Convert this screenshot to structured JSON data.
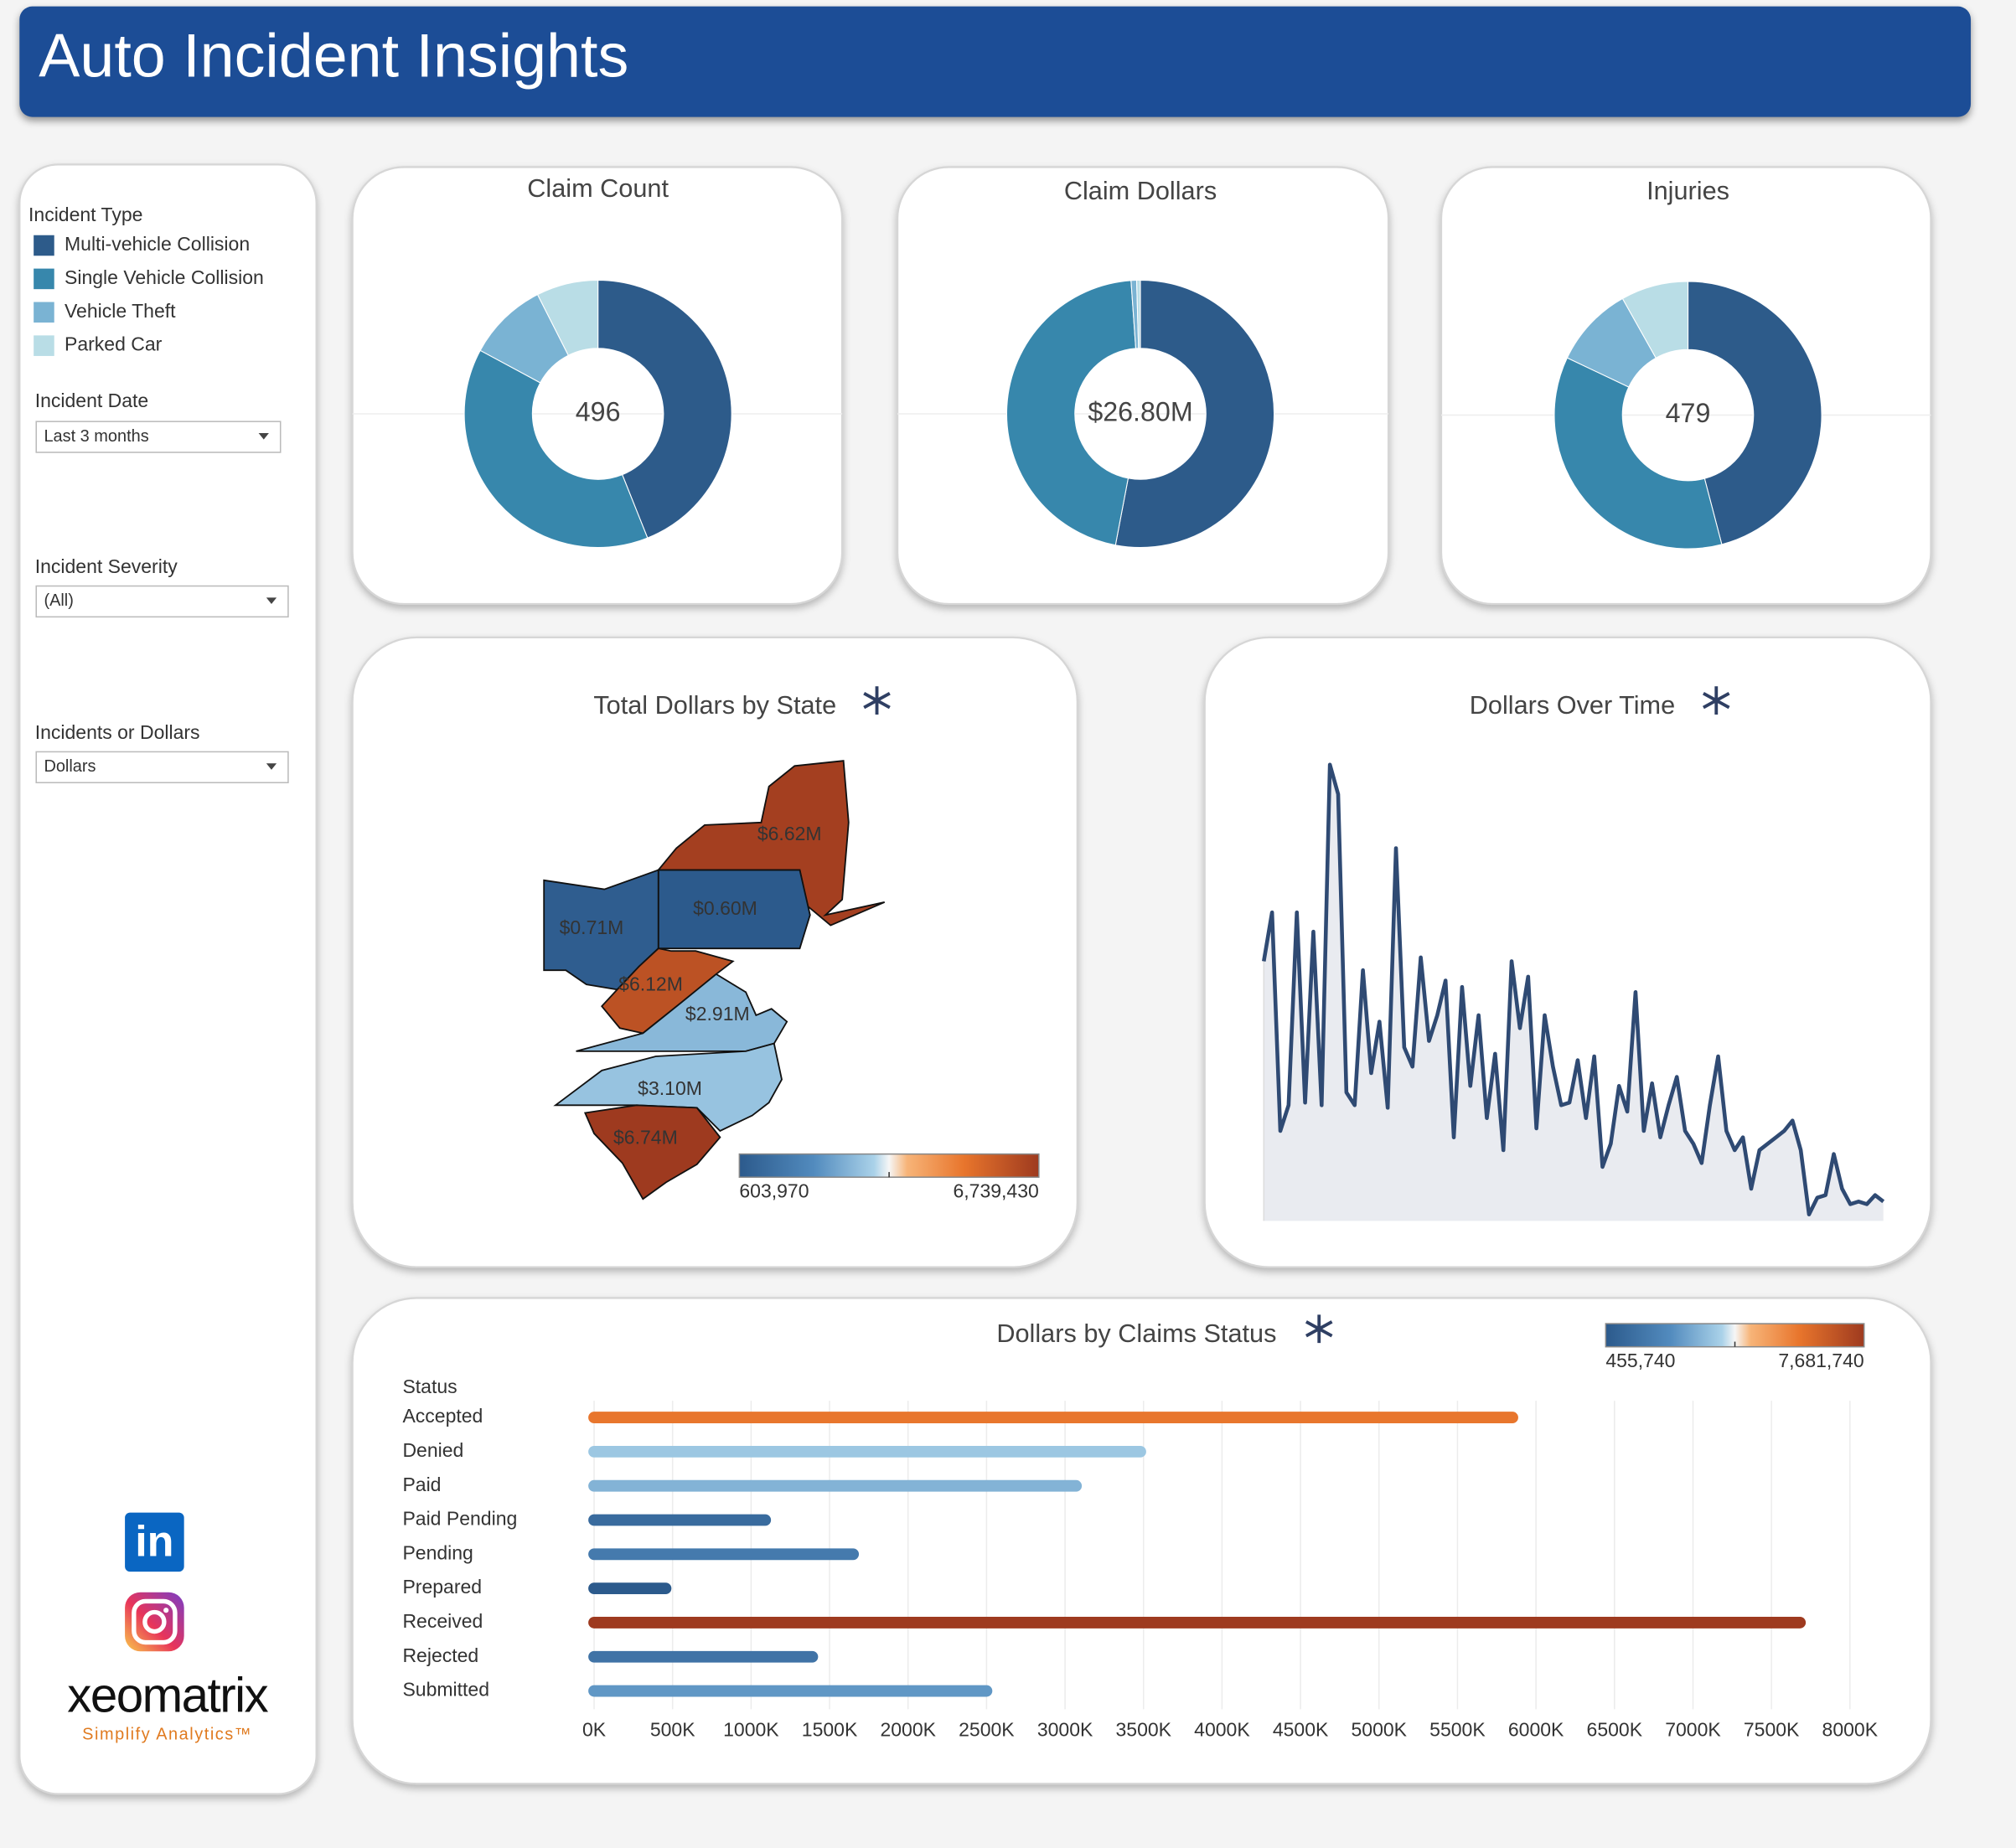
{
  "header": {
    "title": "Auto Incident Insights"
  },
  "sidebar": {
    "legend": {
      "title": "Incident Type",
      "items": [
        {
          "name": "Multi-vehicle Collision",
          "color": "#2d5b8a"
        },
        {
          "name": "Single Vehicle Collision",
          "color": "#3787ac"
        },
        {
          "name": "Vehicle Theft",
          "color": "#7ab3d3"
        },
        {
          "name": "Parked Car",
          "color": "#b9dde6"
        }
      ]
    },
    "filters": [
      {
        "label": "Incident Date",
        "value": "Last 3 months"
      },
      {
        "label": "Incident Severity",
        "value": "(All)"
      },
      {
        "label": "Incidents or Dollars",
        "value": "Dollars"
      }
    ],
    "linkedin_icon": "in",
    "brand": "xeomatrix",
    "tagline": "Simplify Analytics™"
  },
  "chart_data": [
    {
      "type": "donut",
      "title": "Claim Count",
      "center": 496,
      "values": [
        218,
        193,
        48,
        37
      ]
    },
    {
      "type": "donut",
      "title": "Claim Dollars",
      "center": {
        "value": 26.8,
        "label": "$26.80M"
      },
      "values": [
        14.2,
        12.3,
        0.18,
        0.12
      ]
    },
    {
      "type": "donut",
      "title": "Injuries",
      "center": 479,
      "values": [
        220,
        173,
        47,
        39
      ]
    },
    {
      "type": "choropleth",
      "title": "Total Dollars by State",
      "regions": [
        {
          "value": 6620000,
          "label": "$6.62M"
        },
        {
          "value": 600000,
          "label": "$0.60M"
        },
        {
          "value": 710000,
          "label": "$0.71M"
        },
        {
          "value": 6120000,
          "label": "$6.12M"
        },
        {
          "value": 2910000,
          "label": "$2.91M"
        },
        {
          "value": 3100000,
          "label": "$3.10M"
        },
        {
          "value": 6740000,
          "label": "$6.74M"
        }
      ],
      "colorscale": {
        "min": {
          "value": 603970,
          "label": "603,970"
        },
        "max": {
          "value": 6739430,
          "label": "6,739,430"
        }
      }
    },
    {
      "type": "area",
      "title": "Dollars Over Time",
      "color": "#2f4a73",
      "ylim": [
        0,
        360
      ],
      "values": [
        202,
        240,
        70,
        90,
        240,
        92,
        225,
        90,
        355,
        332,
        100,
        90,
        195,
        115,
        155,
        88,
        290,
        135,
        120,
        205,
        140,
        160,
        187,
        65,
        182,
        105,
        160,
        80,
        130,
        55,
        202,
        150,
        190,
        72,
        160,
        120,
        90,
        92,
        125,
        80,
        128,
        42,
        60,
        105,
        85,
        178,
        70,
        107,
        65,
        90,
        112,
        70,
        60,
        45,
        90,
        128,
        70,
        55,
        65,
        25,
        55,
        60,
        65,
        70,
        78,
        55,
        5,
        18,
        20,
        52,
        25,
        13,
        15,
        13,
        20,
        15
      ]
    },
    {
      "type": "hbar",
      "title": "Dollars by Claims Status",
      "y_label": "Status",
      "categories": [
        "Accepted",
        "Denied",
        "Paid",
        "Paid Pending",
        "Pending",
        "Prepared",
        "Received",
        "Rejected",
        "Submitted"
      ],
      "values": [
        5850000,
        3480000,
        3070000,
        1090000,
        1650000,
        455740,
        7681740,
        1390000,
        2500000
      ],
      "xlim": [
        0,
        8000000
      ],
      "xticks": [
        {
          "value": 0,
          "label": "0K"
        },
        {
          "value": 500000,
          "label": "500K"
        },
        {
          "value": 1000000,
          "label": "1000K"
        },
        {
          "value": 1500000,
          "label": "1500K"
        },
        {
          "value": 2000000,
          "label": "2000K"
        },
        {
          "value": 2500000,
          "label": "2500K"
        },
        {
          "value": 3000000,
          "label": "3000K"
        },
        {
          "value": 3500000,
          "label": "3500K"
        },
        {
          "value": 4000000,
          "label": "4000K"
        },
        {
          "value": 4500000,
          "label": "4500K"
        },
        {
          "value": 5000000,
          "label": "5000K"
        },
        {
          "value": 5500000,
          "label": "5500K"
        },
        {
          "value": 6000000,
          "label": "6000K"
        },
        {
          "value": 6500000,
          "label": "6500K"
        },
        {
          "value": 7000000,
          "label": "7000K"
        },
        {
          "value": 7500000,
          "label": "7500K"
        },
        {
          "value": 8000000,
          "label": "8000K"
        }
      ],
      "grid": true,
      "colorscale": {
        "min": {
          "value": 455740,
          "label": "455,740"
        },
        "max": {
          "value": 7681740,
          "label": "7,681,740"
        }
      }
    }
  ]
}
